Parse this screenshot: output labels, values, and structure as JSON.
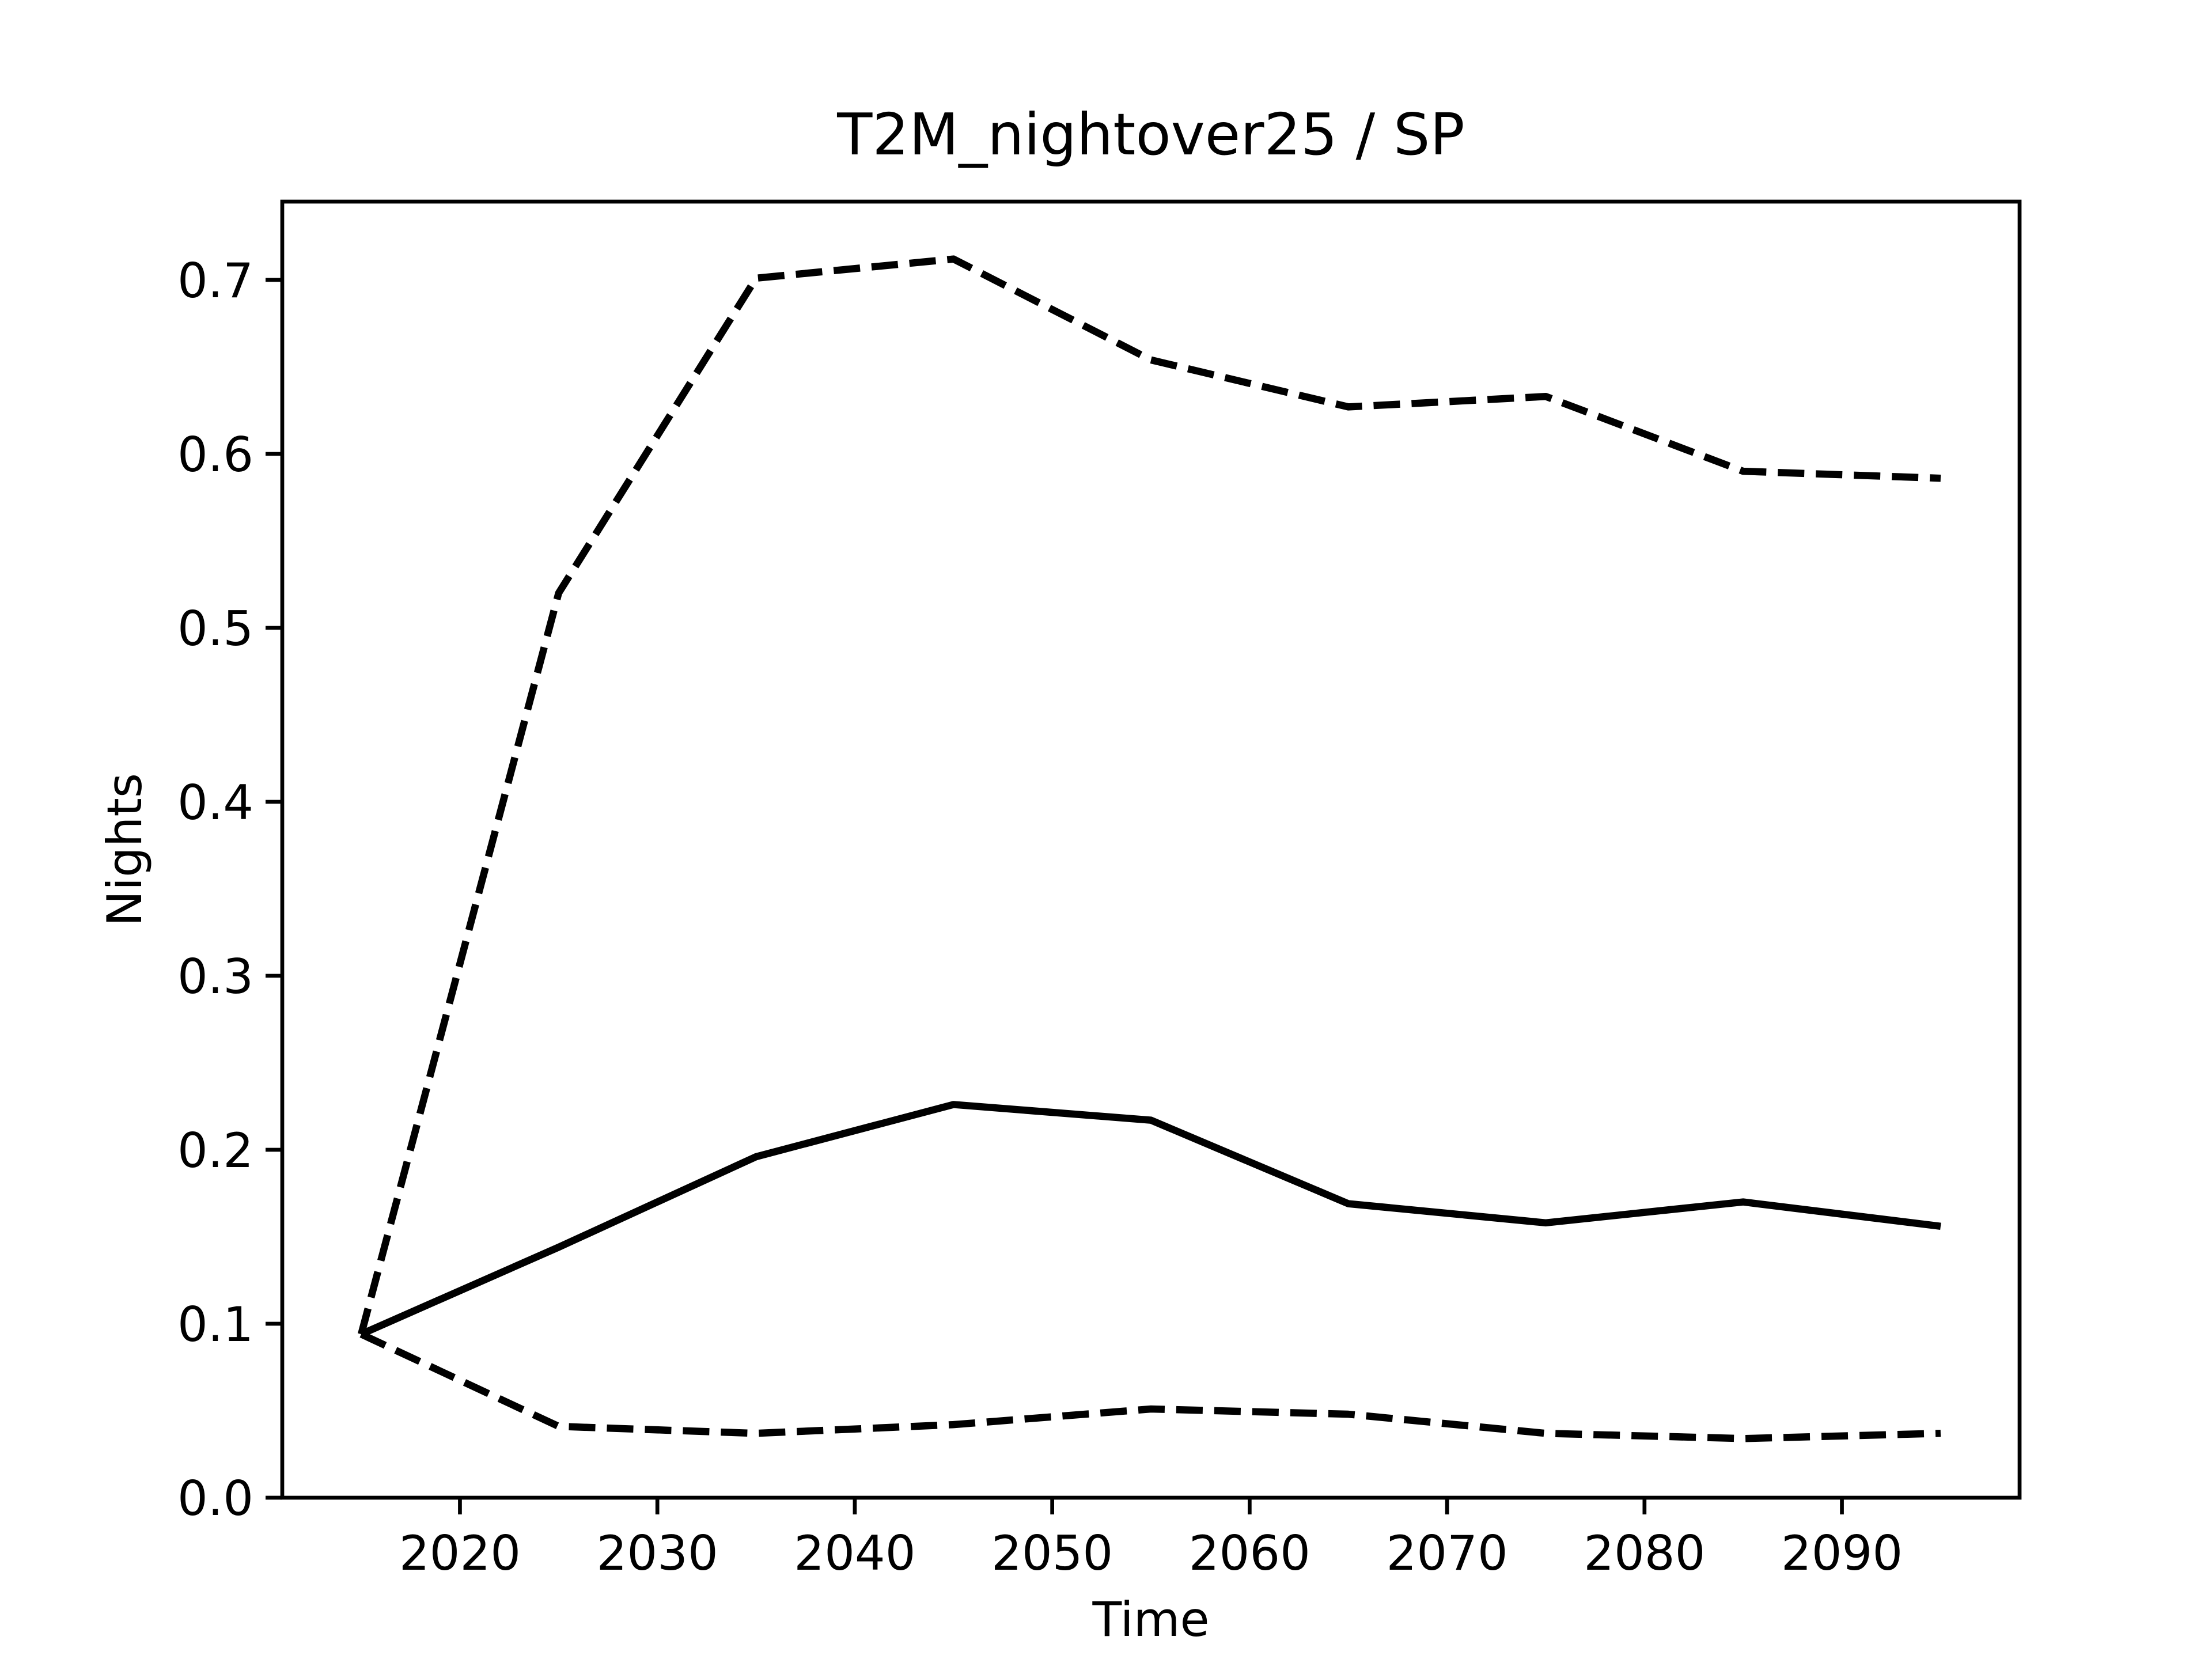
{
  "chart_data": {
    "type": "line",
    "title": "T2M_nightover25 / SP",
    "xlabel": "Time",
    "ylabel": "Nights",
    "x": [
      2015,
      2025,
      2035,
      2045,
      2055,
      2065,
      2075,
      2085,
      2095
    ],
    "series": [
      {
        "color": "#000000",
        "style": "solid",
        "values": [
          0.094,
          0.144,
          0.196,
          0.226,
          0.217,
          0.169,
          0.158,
          0.17,
          0.156
        ]
      },
      {
        "color": "#000000",
        "style": "dashed",
        "values": [
          0.094,
          0.52,
          0.701,
          0.712,
          0.654,
          0.627,
          0.633,
          0.59,
          0.586
        ]
      },
      {
        "color": "#000000",
        "style": "dashed",
        "values": [
          0.094,
          0.041,
          0.037,
          0.042,
          0.051,
          0.048,
          0.037,
          0.034,
          0.037
        ]
      }
    ],
    "xlim": [
      2011,
      2099
    ],
    "xticks": [
      2020,
      2030,
      2040,
      2050,
      2060,
      2070,
      2080,
      2090
    ],
    "ylim": [
      0,
      0.745
    ],
    "yticks": [
      {
        "value": 0,
        "label": "0.0"
      },
      0.1,
      0.2,
      0.3,
      0.4,
      0.5,
      0.6,
      0.7
    ],
    "grid": false
  }
}
